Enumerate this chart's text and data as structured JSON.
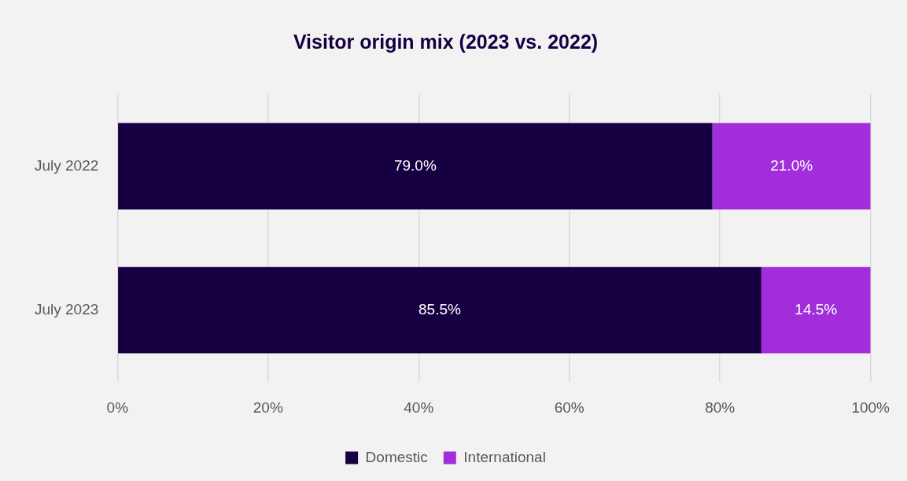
{
  "chart_data": {
    "type": "bar",
    "title": "Visitor origin mix (2023 vs. 2022)",
    "orientation": "horizontal",
    "stacked": true,
    "categories": [
      "July 2022",
      "July 2023"
    ],
    "series": [
      {
        "name": "Domestic",
        "color": "#160042",
        "values": [
          79.0,
          85.5
        ],
        "value_labels": [
          "79.0%",
          "85.5%"
        ]
      },
      {
        "name": "International",
        "color": "#a12ddb",
        "values": [
          21.0,
          14.5
        ],
        "value_labels": [
          "21.0%",
          "14.5%"
        ]
      }
    ],
    "xlim": [
      0,
      100
    ],
    "xticks": [
      {
        "value": 0,
        "label": "0%"
      },
      {
        "value": 20,
        "label": "20%"
      },
      {
        "value": 40,
        "label": "40%"
      },
      {
        "value": 60,
        "label": "60%"
      },
      {
        "value": 80,
        "label": "80%"
      },
      {
        "value": 100,
        "label": "100%"
      }
    ],
    "grid": "x",
    "legend": "bottom"
  }
}
